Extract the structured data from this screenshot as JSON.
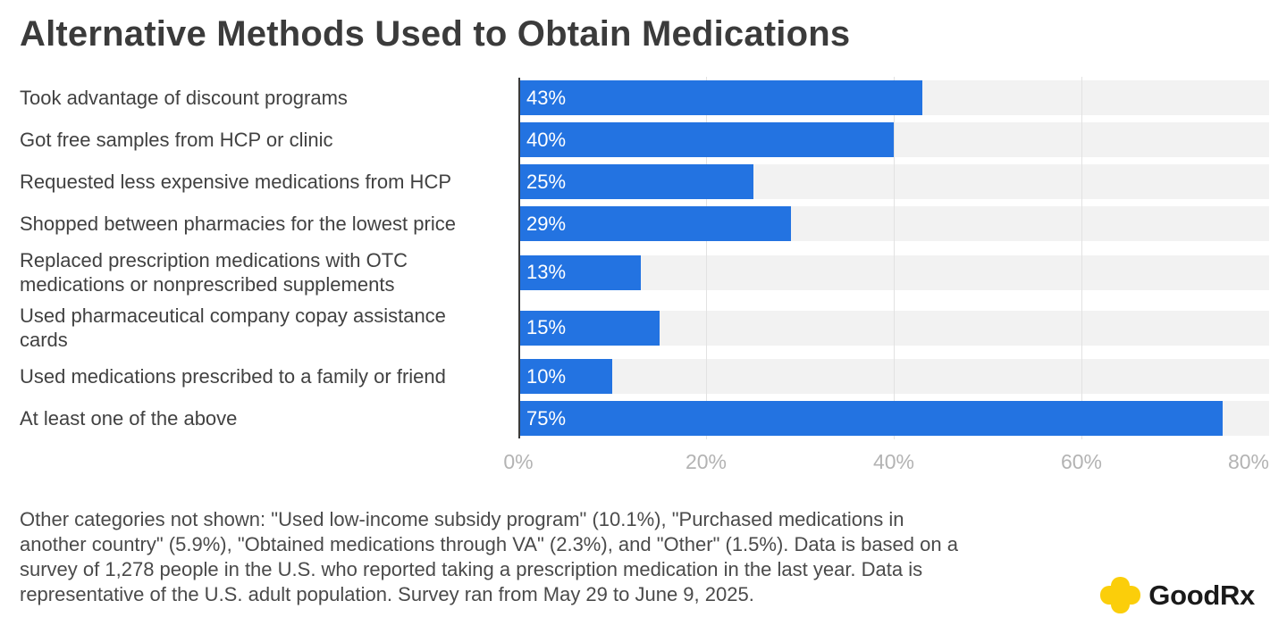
{
  "title": "Alternative Methods Used to Obtain Medications",
  "chart_data": {
    "type": "bar",
    "orientation": "horizontal",
    "title": "Alternative Methods Used to Obtain Medications",
    "categories": [
      "Took advantage of discount programs",
      "Got free samples from HCP or clinic",
      "Requested less expensive medications from HCP",
      "Shopped between pharmacies for the lowest price",
      "Replaced prescription medications with OTC medications or nonprescribed supplements",
      "Used pharmaceutical company copay assistance cards",
      "Used medications prescribed to a family or friend",
      "At least one of the above"
    ],
    "values": [
      43,
      40,
      25,
      29,
      13,
      15,
      10,
      75
    ],
    "value_labels": [
      "43%",
      "40%",
      "25%",
      "29%",
      "13%",
      "15%",
      "10%",
      "75%"
    ],
    "xlabel": "",
    "ylabel": "",
    "xlim": [
      0,
      80
    ],
    "x_ticks": [
      "0%",
      "20%",
      "40%",
      "60%",
      "80%"
    ],
    "gridline_positions_pct": [
      20,
      40,
      60
    ],
    "grid": true,
    "legend": false,
    "bar_color": "#2373e1",
    "track_color": "#f2f2f2",
    "value_label_color": "#ffffff"
  },
  "footer": {
    "lines": [
      "Other categories not shown: \"Used low-income subsidy program\" (10.1%), \"Purchased medications in",
      "another country\" (5.9%), \"Obtained medications through VA\" (2.3%), and \"Other\" (1.5%). Data is based on a",
      "survey of 1,278 people in the U.S. who reported taking a prescription medication in the last year. Data is",
      "representative of the U.S. adult population. Survey ran from May 29 to June 9, 2025."
    ]
  },
  "logo": {
    "brand": "GoodRx",
    "icon": "goodrx-cross-icon",
    "icon_color": "#fbce0a",
    "text_color": "#1a1a1a"
  }
}
